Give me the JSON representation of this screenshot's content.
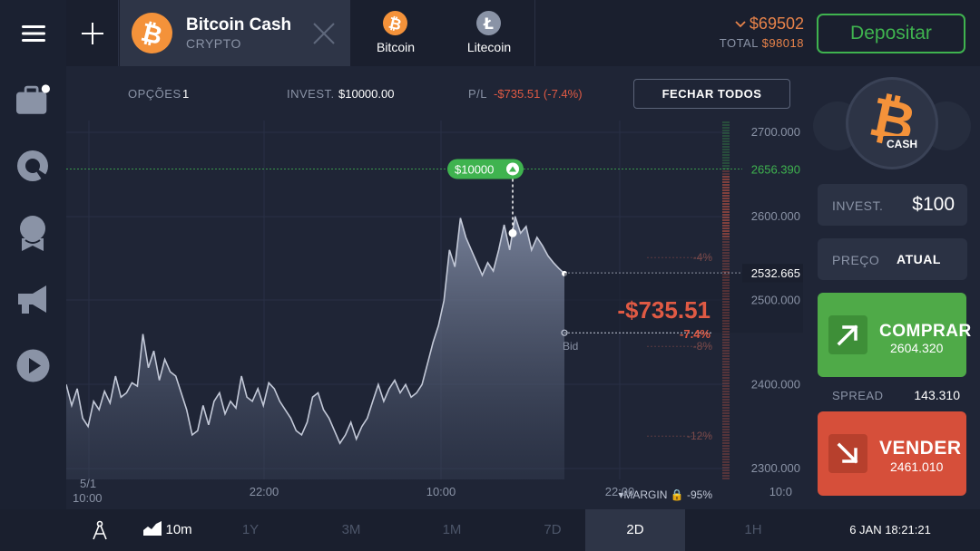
{
  "header": {
    "active_tab": {
      "name": "Bitcoin Cash",
      "category": "CRYPTO"
    },
    "asset_tabs": [
      {
        "label": "Bitcoin",
        "color": "#f4923a",
        "icon": "bitcoin-icon"
      },
      {
        "label": "Litecoin",
        "color": "#8a93a6",
        "icon": "litecoin-icon"
      }
    ],
    "balance": {
      "value": "$69502",
      "total_label": "TOTAL",
      "total_value": "$98018"
    },
    "deposit_label": "Depositar"
  },
  "sidebar": {
    "icons": [
      "menu-icon",
      "portfolio-icon",
      "chart-analysis-icon",
      "achievements-icon",
      "news-icon",
      "video-icon"
    ]
  },
  "infobar": {
    "options_label": "OPÇÕES",
    "options_value": "1",
    "invest_label": "INVEST.",
    "invest_value": "$10000.00",
    "pl_label": "P/L",
    "pl_value": "-$735.51 (-7.4%)",
    "close_all_label": "FECHAR TODOS"
  },
  "chart_data": {
    "type": "area",
    "y_ticks": [
      "2700.000",
      "2600.000",
      "2500.000",
      "2400.000",
      "2300.000"
    ],
    "x_ticks": [
      {
        "label": "5/1",
        "sub": "10:00"
      },
      {
        "label": "22:00"
      },
      {
        "label": "10:00"
      },
      {
        "label": "22:00"
      },
      {
        "label": "10:0"
      }
    ],
    "series": [
      {
        "values": [
          2400,
          2375,
          2395,
          2360,
          2350,
          2380,
          2370,
          2392,
          2378,
          2410,
          2385,
          2390,
          2402,
          2398,
          2460,
          2420,
          2440,
          2405,
          2430,
          2415,
          2410,
          2390,
          2370,
          2340,
          2345,
          2375,
          2352,
          2380,
          2390,
          2365,
          2380,
          2372,
          2410,
          2385,
          2380,
          2395,
          2375,
          2402,
          2395,
          2380,
          2370,
          2360,
          2345,
          2340,
          2355,
          2385,
          2390,
          2370,
          2360,
          2345,
          2330,
          2340,
          2355,
          2335,
          2350,
          2360,
          2380,
          2400,
          2380,
          2395,
          2405,
          2390,
          2400,
          2385,
          2390,
          2400,
          2425,
          2450,
          2470,
          2500,
          2560,
          2540,
          2598,
          2575,
          2560,
          2545,
          2530,
          2545,
          2535,
          2560,
          2590,
          2560,
          2600,
          2580,
          2588,
          2560,
          2575,
          2565,
          2553,
          2545,
          2538,
          2532
        ]
      }
    ],
    "take_profit": {
      "label": "$10000",
      "value": "2656.390",
      "color": "#3fb34f"
    },
    "current": {
      "value": "2532.665"
    },
    "bid_label": "Bid",
    "pl": {
      "amount": "-$735.51",
      "percent": "-7.4%"
    },
    "levels": [
      {
        "label": "-4%"
      },
      {
        "label": "-8%"
      },
      {
        "label": "-12%"
      }
    ],
    "margin": {
      "label": "MARGIN",
      "value": "-95%"
    }
  },
  "right_panel": {
    "coin_label": "CASH",
    "invest_label": "INVEST.",
    "invest_value": "$100",
    "price_label": "PREÇO",
    "price_value": "ATUAL",
    "buy": {
      "label": "COMPRAR",
      "price": "2604.320"
    },
    "spread_label": "SPREAD",
    "spread_value": "143.310",
    "sell": {
      "label": "VENDER",
      "price": "2461.010"
    }
  },
  "bottombar": {
    "interval": "10m",
    "periods": [
      "1Y",
      "3M",
      "1M",
      "7D",
      "2D",
      "1H"
    ],
    "active_period": "2D",
    "clock": "6 JAN 18:21:21"
  },
  "colors": {
    "accent_green": "#3fb34f",
    "accent_red": "#e05a44",
    "orange": "#e8834a",
    "bitcoin_orange": "#f4923a"
  }
}
